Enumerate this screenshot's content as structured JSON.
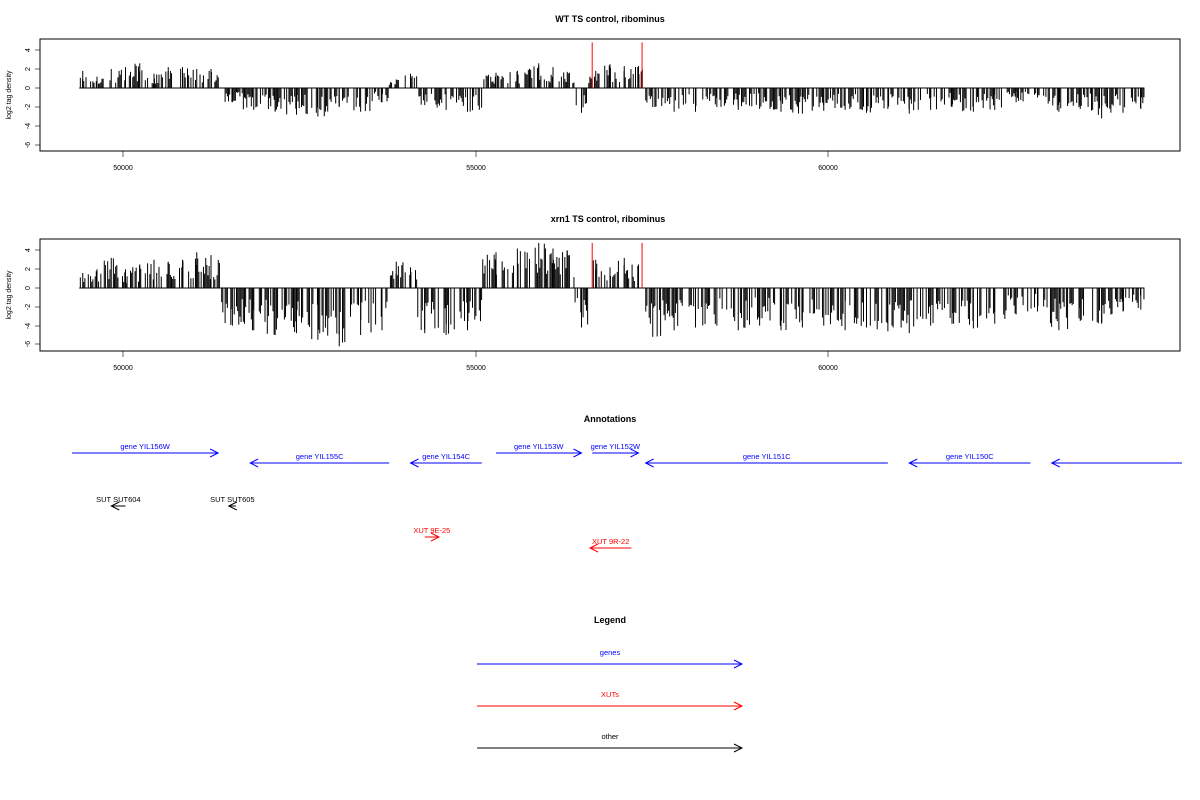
{
  "panels": [
    {
      "title": "WT TS control, ribominus",
      "ylabel": "log2 tag density",
      "yticks": [
        "4",
        "2",
        "0",
        "-2",
        "-4",
        "-6"
      ],
      "xticks": [
        "50000",
        "55000",
        "60000"
      ]
    },
    {
      "title": "xrn1 TS control, ribominus",
      "ylabel": "log2 tag density",
      "yticks": [
        "4",
        "2",
        "0",
        "-2",
        "-4",
        "-6"
      ],
      "xticks": [
        "50000",
        "55000",
        "60000"
      ]
    }
  ],
  "annotations": {
    "title": "Annotations",
    "items": [
      {
        "label": "gene YIL156W",
        "type": "genes",
        "strand": "+",
        "start": 49250,
        "end": 51300
      },
      {
        "label": "gene YIL155C",
        "type": "genes",
        "strand": "-",
        "start": 51750,
        "end": 53700
      },
      {
        "label": "gene YIL154C",
        "type": "genes",
        "strand": "-",
        "start": 54000,
        "end": 55000
      },
      {
        "label": "gene YIL153W",
        "type": "genes",
        "strand": "+",
        "start": 55200,
        "end": 56400
      },
      {
        "label": "gene YIL152W",
        "type": "genes",
        "strand": "+",
        "start": 56550,
        "end": 57200
      },
      {
        "label": "gene YIL151C",
        "type": "genes",
        "strand": "-",
        "start": 57300,
        "end": 60700
      },
      {
        "label": "gene YIL150C",
        "type": "genes",
        "strand": "-",
        "start": 61000,
        "end": 62700
      },
      {
        "label": "",
        "type": "genes",
        "strand": "-",
        "start": 63000,
        "end": 65000
      },
      {
        "label": "SUT SUT604",
        "type": "other",
        "strand": "-",
        "start": 49800,
        "end": 50000
      },
      {
        "label": "SUT SUT605",
        "type": "other",
        "strand": "-",
        "start": 51450,
        "end": 51550
      },
      {
        "label": "XUT 9E-25",
        "type": "XUTs",
        "strand": "+",
        "start": 54200,
        "end": 54400
      },
      {
        "label": "XUT 9R-22",
        "type": "XUTs",
        "strand": "-",
        "start": 56520,
        "end": 57100
      }
    ]
  },
  "legend": {
    "title": "Legend",
    "items": [
      {
        "label": "genes",
        "color": "#0000ff"
      },
      {
        "label": "XUTs",
        "color": "#ff0000"
      },
      {
        "label": "other",
        "color": "#000000"
      }
    ]
  },
  "chart_data": [
    {
      "type": "bar",
      "title": "WT TS control, ribominus",
      "xlabel": "",
      "ylabel": "log2 tag density",
      "xlim": [
        48800,
        64800
      ],
      "ylim": [
        -6.5,
        5
      ],
      "x_range": [
        49350,
        64300
      ],
      "gene_boundaries": [
        51400,
        55350,
        56600,
        57200
      ],
      "series": [
        {
          "values": [
            [
              49400,
              1.8
            ],
            [
              49600,
              1.2
            ],
            [
              49800,
              2.0
            ],
            [
              50000,
              2.2
            ],
            [
              50200,
              2.6
            ],
            [
              50400,
              1.5
            ],
            [
              50600,
              2.2
            ],
            [
              50800,
              2.2
            ],
            [
              51000,
              2.0
            ],
            [
              51200,
              2.0
            ],
            [
              51500,
              -1.5
            ],
            [
              51800,
              -2.3
            ],
            [
              52100,
              -2.5
            ],
            [
              52400,
              -2.8
            ],
            [
              52700,
              -3.0
            ],
            [
              53000,
              -2.0
            ],
            [
              53300,
              -2.5
            ],
            [
              53600,
              -1.5
            ],
            [
              53800,
              0.9
            ],
            [
              54000,
              1.5
            ],
            [
              54200,
              -1.8
            ],
            [
              54500,
              -2.3
            ],
            [
              54800,
              -2.5
            ],
            [
              55200,
              1.6
            ],
            [
              55500,
              1.8
            ],
            [
              55800,
              2.6
            ],
            [
              56000,
              2.2
            ],
            [
              56200,
              1.7
            ],
            [
              56400,
              -2.6
            ],
            [
              56600,
              1.8
            ],
            [
              56800,
              2.5
            ],
            [
              57000,
              2.3
            ],
            [
              57200,
              2.3
            ],
            [
              57400,
              -2.0
            ],
            [
              57700,
              -2.5
            ],
            [
              58000,
              -2.5
            ],
            [
              58300,
              -2.0
            ],
            [
              58600,
              -2.3
            ],
            [
              58900,
              -2.2
            ],
            [
              59200,
              -2.5
            ],
            [
              59500,
              -2.7
            ],
            [
              59800,
              -2.4
            ],
            [
              60100,
              -2.3
            ],
            [
              60400,
              -2.6
            ],
            [
              60700,
              -2.2
            ],
            [
              61000,
              -2.7
            ],
            [
              61300,
              -2.3
            ],
            [
              61600,
              -2.0
            ],
            [
              61900,
              -2.5
            ],
            [
              62200,
              -2.3
            ],
            [
              62500,
              -1.5
            ],
            [
              62800,
              -1.0
            ],
            [
              63100,
              -2.5
            ],
            [
              63400,
              -2.2
            ],
            [
              63700,
              -3.2
            ],
            [
              64000,
              -2.6
            ],
            [
              64250,
              -2.2
            ]
          ]
        },
        {
          "name": "",
          "highlight": true,
          "values": [
            [
              56550,
              4.8
            ],
            [
              57250,
              4.8
            ]
          ]
        }
      ]
    },
    {
      "type": "bar",
      "title": "xrn1 TS control, ribominus",
      "xlabel": "",
      "ylabel": "log2 tag density",
      "xlim": [
        48800,
        64800
      ],
      "ylim": [
        -6.5,
        5
      ],
      "x_range": [
        49350,
        64300
      ],
      "gene_boundaries": [
        51400,
        55350,
        56600,
        57200
      ],
      "series": [
        {
          "values": [
            [
              49400,
              1.6
            ],
            [
              49600,
              2.0
            ],
            [
              49800,
              3.2
            ],
            [
              50000,
              2.0
            ],
            [
              50200,
              2.5
            ],
            [
              50400,
              3.0
            ],
            [
              50600,
              2.8
            ],
            [
              50800,
              3.0
            ],
            [
              51000,
              3.8
            ],
            [
              51200,
              3.5
            ],
            [
              51500,
              -4.0
            ],
            [
              51800,
              -4.5
            ],
            [
              52100,
              -5.0
            ],
            [
              52400,
              -4.8
            ],
            [
              52700,
              -5.5
            ],
            [
              53000,
              -6.2
            ],
            [
              53300,
              -5.0
            ],
            [
              53600,
              -4.5
            ],
            [
              53800,
              2.8
            ],
            [
              54000,
              2.2
            ],
            [
              54200,
              -4.8
            ],
            [
              54500,
              -5.0
            ],
            [
              54800,
              -4.5
            ],
            [
              55200,
              3.8
            ],
            [
              55500,
              4.2
            ],
            [
              55800,
              4.8
            ],
            [
              56000,
              4.2
            ],
            [
              56200,
              4.0
            ],
            [
              56400,
              -4.2
            ],
            [
              56600,
              3.0
            ],
            [
              56800,
              2.2
            ],
            [
              57000,
              3.2
            ],
            [
              57200,
              2.5
            ],
            [
              57400,
              -5.2
            ],
            [
              57700,
              -4.5
            ],
            [
              58000,
              -4.2
            ],
            [
              58300,
              -4.0
            ],
            [
              58600,
              -4.5
            ],
            [
              58900,
              -4.0
            ],
            [
              59200,
              -4.5
            ],
            [
              59500,
              -4.2
            ],
            [
              59800,
              -4.0
            ],
            [
              60100,
              -4.5
            ],
            [
              60400,
              -4.2
            ],
            [
              60700,
              -4.6
            ],
            [
              61000,
              -4.8
            ],
            [
              61300,
              -4.0
            ],
            [
              61600,
              -3.8
            ],
            [
              61900,
              -4.3
            ],
            [
              62200,
              -3.8
            ],
            [
              62500,
              -2.8
            ],
            [
              62800,
              -2.5
            ],
            [
              63100,
              -4.5
            ],
            [
              63400,
              -3.5
            ],
            [
              63700,
              -3.8
            ],
            [
              64000,
              -2.5
            ],
            [
              64250,
              -2.3
            ]
          ]
        },
        {
          "name": "",
          "highlight": true,
          "values": [
            [
              56550,
              4.8
            ],
            [
              57250,
              4.8
            ]
          ]
        }
      ]
    }
  ]
}
